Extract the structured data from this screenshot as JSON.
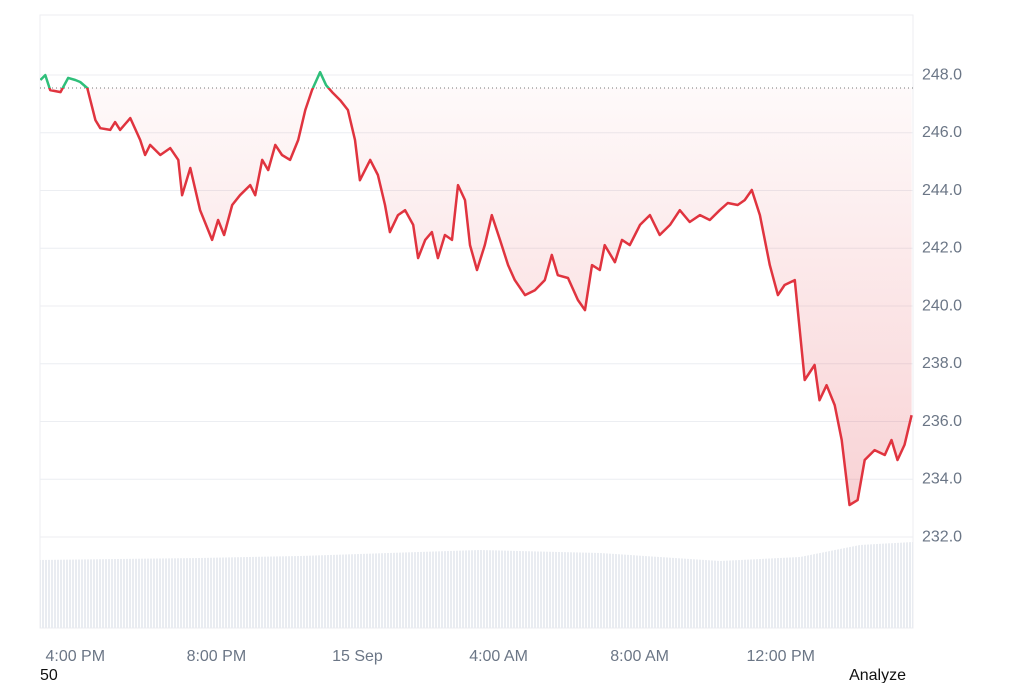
{
  "chart_data": {
    "type": "line",
    "x": [
      -0.99,
      -0.85,
      -0.71,
      -0.42,
      -0.2,
      0,
      0.14,
      0.34,
      0.57,
      0.71,
      0.99,
      1.13,
      1.27,
      1.56,
      1.84,
      1.98,
      2.12,
      2.41,
      2.69,
      2.92,
      3.03,
      3.26,
      3.54,
      3.88,
      4.05,
      4.22,
      4.45,
      4.67,
      4.96,
      5.1,
      5.3,
      5.47,
      5.67,
      5.86,
      6.09,
      6.32,
      6.52,
      6.71,
      6.94,
      7.11,
      7.28,
      7.51,
      7.73,
      7.93,
      8.07,
      8.36,
      8.58,
      8.78,
      8.92,
      9.15,
      9.35,
      9.58,
      9.72,
      9.92,
      10.11,
      10.28,
      10.48,
      10.68,
      10.85,
      11.05,
      11.19,
      11.39,
      11.61,
      11.81,
      12.04,
      12.27,
      12.46,
      12.75,
      13.03,
      13.31,
      13.51,
      13.68,
      13.97,
      14.25,
      14.45,
      14.65,
      14.87,
      15.01,
      15.3,
      15.5,
      15.72,
      16.01,
      16.29,
      16.57,
      16.86,
      17.14,
      17.42,
      17.71,
      17.99,
      18.27,
      18.5,
      18.78,
      18.98,
      19.18,
      19.41,
      19.69,
      19.92,
      20.11,
      20.4,
      20.68,
      20.96,
      21.1,
      21.3,
      21.53,
      21.73,
      21.95,
      22.18,
      22.38,
      22.66,
      22.95,
      23.14,
      23.31,
      23.51,
      23.71
    ],
    "values": [
      247.83,
      248.0,
      247.48,
      247.41,
      247.9,
      247.83,
      247.76,
      247.55,
      246.44,
      246.16,
      246.1,
      246.37,
      246.1,
      246.51,
      245.75,
      245.23,
      245.58,
      245.23,
      245.47,
      245.06,
      243.84,
      244.78,
      243.32,
      242.29,
      242.98,
      242.46,
      243.5,
      243.84,
      244.19,
      243.84,
      245.06,
      244.71,
      245.58,
      245.23,
      245.06,
      245.75,
      246.79,
      247.48,
      248.1,
      247.65,
      247.41,
      247.13,
      246.79,
      245.75,
      244.36,
      245.06,
      244.54,
      243.5,
      242.56,
      243.15,
      243.32,
      242.81,
      241.66,
      242.29,
      242.56,
      241.66,
      242.46,
      242.29,
      244.19,
      243.67,
      242.11,
      241.25,
      242.11,
      243.15,
      242.29,
      241.42,
      240.9,
      240.38,
      240.55,
      240.9,
      241.77,
      241.07,
      240.97,
      240.21,
      239.86,
      241.42,
      241.25,
      242.11,
      241.52,
      242.29,
      242.11,
      242.81,
      243.15,
      242.46,
      242.81,
      243.32,
      242.91,
      243.15,
      242.98,
      243.32,
      243.57,
      243.5,
      243.67,
      244.02,
      243.15,
      241.42,
      240.38,
      240.73,
      240.9,
      237.44,
      237.96,
      236.74,
      237.26,
      236.57,
      235.36,
      233.11,
      233.28,
      234.67,
      235.01,
      234.84,
      235.36,
      234.67,
      235.19,
      236.22
    ],
    "baseline": 247.55,
    "up_color": "#2fbf7a",
    "down_color": "#e0343f",
    "xlim": [
      -1,
      23.75
    ],
    "xticks": [
      {
        "value": 0,
        "label": "4:00 PM"
      },
      {
        "value": 4,
        "label": "8:00 PM"
      },
      {
        "value": 8,
        "label": "15 Sep"
      },
      {
        "value": 12,
        "label": "4:00 AM"
      },
      {
        "value": 16,
        "label": "8:00 AM"
      },
      {
        "value": 20,
        "label": "12:00 PM"
      }
    ],
    "ylim": [
      228.85,
      250.08
    ],
    "yticks": [
      {
        "value": 232,
        "label": "232.0"
      },
      {
        "value": 234,
        "label": "234.0"
      },
      {
        "value": 236,
        "label": "236.0"
      },
      {
        "value": 238,
        "label": "238.0"
      },
      {
        "value": 240,
        "label": "240.0"
      },
      {
        "value": 242,
        "label": "242.0"
      },
      {
        "value": 244,
        "label": "244.0"
      },
      {
        "value": 246,
        "label": "246.0"
      },
      {
        "value": 248,
        "label": "248.0"
      }
    ],
    "grid": true
  },
  "footer": {
    "left": "50",
    "right": "Analyze"
  }
}
